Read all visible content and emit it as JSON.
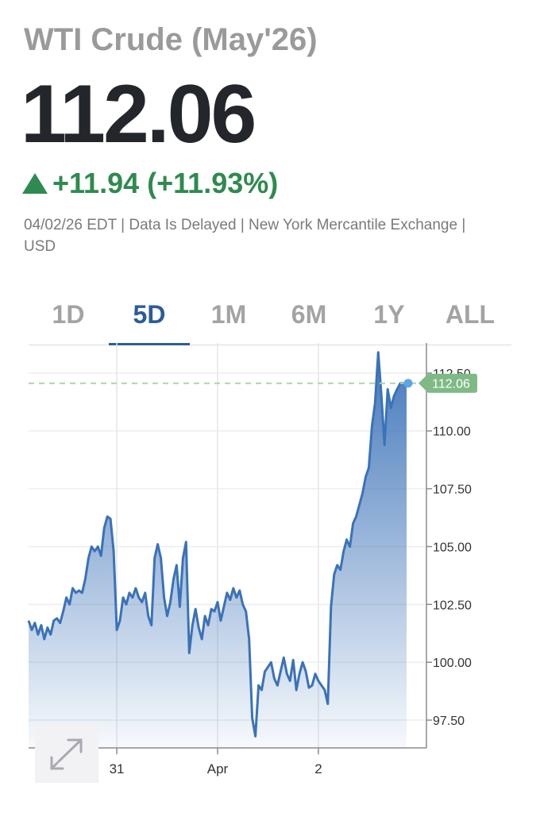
{
  "header": {
    "title": "WTI Crude (May'26)",
    "price": "112.06",
    "change": "+11.94 (+11.93%)",
    "meta": "04/02/26 EDT | Data Is Delayed | New York Mercantile Exchange | USD"
  },
  "tabs": [
    {
      "label": "1D",
      "active": false
    },
    {
      "label": "5D",
      "active": true
    },
    {
      "label": "1M",
      "active": false
    },
    {
      "label": "6M",
      "active": false
    },
    {
      "label": "1Y",
      "active": false
    },
    {
      "label": "ALL",
      "active": false
    }
  ],
  "colors": {
    "line": "#3b72b8",
    "positive": "#2f8a4f",
    "accent": "#2b5d97",
    "last_price_tag": "#7fba86",
    "reference_line": "#a9d7a4"
  },
  "icons": {
    "expand": "expand-arrows-icon",
    "change": "triangle-up-icon"
  },
  "chart_data": {
    "type": "area",
    "title": "",
    "xlabel": "",
    "ylabel": "",
    "x_tick_labels": [
      "31",
      "Apr",
      "2"
    ],
    "y_tick_labels": [
      "97.50",
      "100.00",
      "102.50",
      "105.00",
      "107.50",
      "110.00",
      "112.50"
    ],
    "ylim": [
      96.3,
      113.8
    ],
    "grid": true,
    "last_price": 112.06,
    "last_price_label": "112.06",
    "x_ticks": [
      {
        "label": "31",
        "x": 14
      },
      {
        "label": "Apr",
        "x": 30
      },
      {
        "label": "2",
        "x": 46
      }
    ],
    "x_range": [
      0,
      60
    ],
    "series": [
      {
        "name": "",
        "points": [
          [
            0,
            101.8
          ],
          [
            0.5,
            101.4
          ],
          [
            1,
            101.7
          ],
          [
            1.5,
            101.2
          ],
          [
            2,
            101.6
          ],
          [
            2.5,
            101.0
          ],
          [
            3,
            101.5
          ],
          [
            3.5,
            101.2
          ],
          [
            4,
            101.8
          ],
          [
            4.5,
            101.9
          ],
          [
            5,
            101.7
          ],
          [
            5.5,
            102.2
          ],
          [
            6,
            102.8
          ],
          [
            6.5,
            102.5
          ],
          [
            7,
            103.2
          ],
          [
            7.5,
            103.0
          ],
          [
            8,
            103.1
          ],
          [
            8.5,
            103.0
          ],
          [
            9,
            103.6
          ],
          [
            9.5,
            104.5
          ],
          [
            10,
            105.0
          ],
          [
            10.5,
            104.8
          ],
          [
            11,
            105.0
          ],
          [
            11.5,
            104.6
          ],
          [
            12,
            105.8
          ],
          [
            12.5,
            106.3
          ],
          [
            13,
            106.2
          ],
          [
            13.5,
            104.8
          ],
          [
            14,
            101.4
          ],
          [
            14.5,
            101.8
          ],
          [
            15,
            102.8
          ],
          [
            15.5,
            102.5
          ],
          [
            16,
            103.0
          ],
          [
            16.5,
            102.8
          ],
          [
            17,
            103.2
          ],
          [
            17.5,
            102.8
          ],
          [
            18,
            102.6
          ],
          [
            18.5,
            103.0
          ],
          [
            19,
            102.0
          ],
          [
            19.5,
            101.6
          ],
          [
            20,
            104.5
          ],
          [
            20.5,
            105.1
          ],
          [
            21,
            104.5
          ],
          [
            21.5,
            102.8
          ],
          [
            22,
            102.0
          ],
          [
            22.5,
            102.6
          ],
          [
            23,
            103.6
          ],
          [
            23.5,
            104.2
          ],
          [
            24,
            102.4
          ],
          [
            24.5,
            104.5
          ],
          [
            25,
            105.2
          ],
          [
            25.5,
            100.4
          ],
          [
            26,
            101.6
          ],
          [
            26.5,
            102.3
          ],
          [
            27,
            101.5
          ],
          [
            27.5,
            101.0
          ],
          [
            28,
            102.0
          ],
          [
            28.5,
            101.6
          ],
          [
            29,
            102.3
          ],
          [
            29.5,
            102.2
          ],
          [
            30,
            102.6
          ],
          [
            30.5,
            101.8
          ],
          [
            31,
            102.4
          ],
          [
            31.5,
            103.0
          ],
          [
            32,
            102.7
          ],
          [
            32.5,
            103.2
          ],
          [
            33,
            102.8
          ],
          [
            33.5,
            103.1
          ],
          [
            34,
            102.5
          ],
          [
            34.5,
            102.2
          ],
          [
            35,
            101.0
          ],
          [
            35.5,
            97.6
          ],
          [
            36,
            96.8
          ],
          [
            36.5,
            99.0
          ],
          [
            37,
            98.8
          ],
          [
            37.5,
            99.6
          ],
          [
            38,
            99.8
          ],
          [
            38.5,
            100.0
          ],
          [
            39,
            99.3
          ],
          [
            39.5,
            99.0
          ],
          [
            40,
            99.6
          ],
          [
            40.5,
            100.2
          ],
          [
            41,
            99.5
          ],
          [
            41.5,
            99.2
          ],
          [
            42,
            100.1
          ],
          [
            42.5,
            98.8
          ],
          [
            43,
            99.5
          ],
          [
            43.5,
            100.0
          ],
          [
            44,
            99.6
          ],
          [
            44.5,
            98.9
          ],
          [
            45,
            99.0
          ],
          [
            45.5,
            99.5
          ],
          [
            46,
            99.2
          ],
          [
            46.5,
            99.0
          ],
          [
            47,
            98.8
          ],
          [
            47.5,
            98.2
          ],
          [
            48,
            102.4
          ],
          [
            48.5,
            103.8
          ],
          [
            49,
            104.2
          ],
          [
            49.5,
            104.0
          ],
          [
            50,
            104.8
          ],
          [
            50.5,
            105.3
          ],
          [
            51,
            105.0
          ],
          [
            51.5,
            106.0
          ],
          [
            52,
            106.3
          ],
          [
            52.5,
            106.8
          ],
          [
            53,
            107.3
          ],
          [
            53.5,
            108.0
          ],
          [
            54,
            108.4
          ],
          [
            54.5,
            110.2
          ],
          [
            55,
            111.2
          ],
          [
            55.5,
            113.4
          ],
          [
            56,
            111.5
          ],
          [
            56.5,
            109.4
          ],
          [
            57,
            111.8
          ],
          [
            57.5,
            111.0
          ],
          [
            58,
            111.5
          ],
          [
            58.5,
            111.8
          ],
          [
            59,
            112.06
          ],
          [
            60,
            112.06
          ]
        ]
      }
    ]
  }
}
